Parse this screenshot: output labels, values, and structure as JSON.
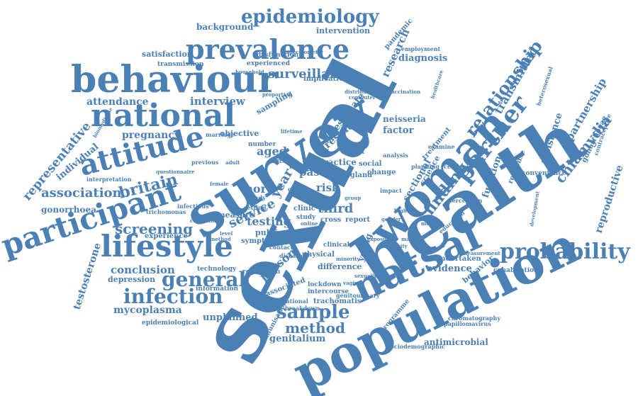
{
  "background_color": "#ffffff",
  "word_color": "#4a80b4",
  "words": [
    "sexual",
    "health",
    "survey",
    "population",
    "woman",
    "natsal",
    "behaviour",
    "national",
    "lifestyle",
    "participant",
    "attitude",
    "prevalence",
    "epidemiology",
    "partner",
    "relationship",
    "probability",
    "general",
    "infection",
    "britain",
    "association",
    "screening",
    "sample",
    "method",
    "finding",
    "surveillance",
    "chlamydia",
    "representative",
    "testosterone",
    "conclusion",
    "mycoplasma",
    "research",
    "diagnosis",
    "transmitted",
    "partnership",
    "reproductive",
    "pregnancy",
    "interview",
    "attendance",
    "individual",
    "gonorrhoea",
    "depression",
    "information",
    "person",
    "service",
    "testing",
    "more",
    "aged",
    "past",
    "third",
    "risk",
    "year",
    "data",
    "result",
    "estimate",
    "factor",
    "neisseria",
    "evidence",
    "behavior",
    "undertaken",
    "cohabitation",
    "function",
    "resistance",
    "genitalium",
    "antimicrobial",
    "unplanned",
    "epidemiological",
    "trachomatis",
    "lockdown",
    "intercourse",
    "associated",
    "programme",
    "background",
    "intervention",
    "satisfaction",
    "transmission",
    "experienced",
    "dysfunction",
    "implication",
    "pandemic",
    "employment",
    "sampling",
    "practice",
    "england",
    "social",
    "change",
    "young",
    "difference",
    "clinical",
    "physical",
    "public",
    "symptom",
    "measure",
    "clinic",
    "study",
    "cross",
    "report",
    "experience",
    "technology",
    "regression",
    "recreational",
    "immunisation",
    "sociodemographic",
    "papillomavirus",
    "chromatography",
    "gonorrhoeae",
    "contraceptive",
    "convenience",
    "response",
    "perception",
    "education",
    "sectional",
    "science",
    "treatment",
    "vaccination",
    "examine",
    "cervical",
    "planning",
    "computer",
    "distribution",
    "spectrometry",
    "heterosexual",
    "healthcare",
    "marriage",
    "previous",
    "number",
    "objective",
    "interpretation",
    "biomedicine",
    "questionnaire",
    "infectious",
    "trichomonas",
    "cohabiting",
    "household",
    "lifetime",
    "proportion",
    "recent",
    "analysis",
    "genitourinary",
    "breakdown",
    "unsafe",
    "month",
    "type",
    "steady",
    "setting",
    "quality",
    "contact",
    "disease",
    "impact",
    "higher",
    "minority",
    "gender",
    "development",
    "measurement",
    "sexually",
    "vaginal",
    "medical",
    "exposure",
    "ethnicity",
    "male",
    "female",
    "adult",
    "online",
    "method",
    "level",
    "group"
  ]
}
